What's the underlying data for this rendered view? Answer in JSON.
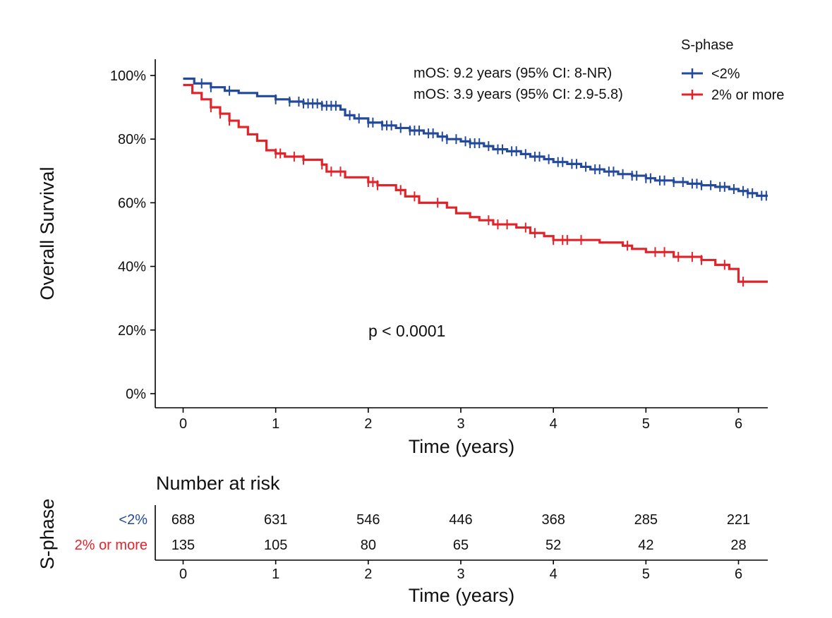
{
  "chart_data": {
    "type": "line",
    "subtype": "kaplan-meier",
    "ylabel": "Overall Survival",
    "xlabel": "Time (years)",
    "xlim": [
      -0.3,
      6.3
    ],
    "ylim": [
      0,
      1
    ],
    "x_ticks": [
      0,
      1,
      2,
      3,
      4,
      5,
      6
    ],
    "x_tick_labels": [
      "0",
      "1",
      "2",
      "3",
      "4",
      "5",
      "6"
    ],
    "y_ticks": [
      0,
      0.2,
      0.4,
      0.6,
      0.8,
      1.0
    ],
    "y_tick_labels": [
      "0%",
      "20%",
      "40%",
      "60%",
      "80%",
      "100%"
    ],
    "grid": false,
    "legend": {
      "title": "S-phase",
      "position": "top-right",
      "entries": [
        "<2%",
        "2% or more"
      ]
    },
    "annotations": {
      "mos_lines": [
        "mOS: 9.2 years (95% CI: 8-NR)",
        "mOS: 3.9 years (95% CI: 2.9-5.8)"
      ],
      "p_value": "p < 0.0001"
    },
    "series": [
      {
        "name": "<2%",
        "color": "#234a9a",
        "steps": [
          [
            0,
            0.99
          ],
          [
            0.12,
            0.975
          ],
          [
            0.3,
            0.963
          ],
          [
            0.45,
            0.952
          ],
          [
            0.6,
            0.945
          ],
          [
            0.8,
            0.935
          ],
          [
            1.0,
            0.925
          ],
          [
            1.15,
            0.918
          ],
          [
            1.3,
            0.912
          ],
          [
            1.5,
            0.905
          ],
          [
            1.7,
            0.893
          ],
          [
            1.75,
            0.875
          ],
          [
            1.85,
            0.865
          ],
          [
            2.0,
            0.852
          ],
          [
            2.15,
            0.843
          ],
          [
            2.3,
            0.835
          ],
          [
            2.45,
            0.827
          ],
          [
            2.6,
            0.818
          ],
          [
            2.75,
            0.808
          ],
          [
            2.85,
            0.8
          ],
          [
            3.0,
            0.793
          ],
          [
            3.1,
            0.787
          ],
          [
            3.25,
            0.778
          ],
          [
            3.35,
            0.768
          ],
          [
            3.5,
            0.762
          ],
          [
            3.65,
            0.753
          ],
          [
            3.75,
            0.745
          ],
          [
            3.9,
            0.737
          ],
          [
            4.0,
            0.728
          ],
          [
            4.15,
            0.722
          ],
          [
            4.3,
            0.713
          ],
          [
            4.4,
            0.705
          ],
          [
            4.55,
            0.698
          ],
          [
            4.7,
            0.69
          ],
          [
            4.85,
            0.685
          ],
          [
            5.0,
            0.677
          ],
          [
            5.1,
            0.67
          ],
          [
            5.3,
            0.665
          ],
          [
            5.45,
            0.66
          ],
          [
            5.6,
            0.655
          ],
          [
            5.75,
            0.65
          ],
          [
            5.9,
            0.643
          ],
          [
            6.0,
            0.637
          ],
          [
            6.1,
            0.63
          ],
          [
            6.2,
            0.622
          ]
        ],
        "censor_x": [
          0.2,
          0.3,
          0.5,
          1.0,
          1.15,
          1.25,
          1.3,
          1.35,
          1.4,
          1.45,
          1.5,
          1.55,
          1.6,
          1.65,
          1.8,
          1.9,
          2.0,
          2.05,
          2.15,
          2.2,
          2.25,
          2.35,
          2.45,
          2.5,
          2.55,
          2.65,
          2.7,
          2.8,
          2.85,
          2.95,
          3.05,
          3.1,
          3.15,
          3.2,
          3.3,
          3.4,
          3.45,
          3.55,
          3.6,
          3.7,
          3.8,
          3.85,
          3.95,
          4.05,
          4.1,
          4.2,
          4.25,
          4.35,
          4.45,
          4.5,
          4.6,
          4.65,
          4.75,
          4.85,
          4.9,
          5.0,
          5.05,
          5.15,
          5.2,
          5.3,
          5.4,
          5.5,
          5.55,
          5.6,
          5.7,
          5.8,
          5.85,
          5.95,
          6.05,
          6.1,
          6.15,
          6.25,
          6.3
        ]
      },
      {
        "name": "2% or more",
        "color": "#e3232a",
        "steps": [
          [
            0,
            0.97
          ],
          [
            0.1,
            0.945
          ],
          [
            0.2,
            0.925
          ],
          [
            0.3,
            0.9
          ],
          [
            0.4,
            0.88
          ],
          [
            0.5,
            0.858
          ],
          [
            0.6,
            0.838
          ],
          [
            0.7,
            0.815
          ],
          [
            0.8,
            0.795
          ],
          [
            0.9,
            0.765
          ],
          [
            1.0,
            0.755
          ],
          [
            1.1,
            0.745
          ],
          [
            1.3,
            0.735
          ],
          [
            1.5,
            0.72
          ],
          [
            1.55,
            0.698
          ],
          [
            1.75,
            0.68
          ],
          [
            2.0,
            0.665
          ],
          [
            2.1,
            0.655
          ],
          [
            2.3,
            0.64
          ],
          [
            2.4,
            0.62
          ],
          [
            2.55,
            0.6
          ],
          [
            2.65,
            0.6
          ],
          [
            2.85,
            0.585
          ],
          [
            2.95,
            0.567
          ],
          [
            3.1,
            0.555
          ],
          [
            3.2,
            0.545
          ],
          [
            3.35,
            0.532
          ],
          [
            3.6,
            0.522
          ],
          [
            3.75,
            0.505
          ],
          [
            3.9,
            0.495
          ],
          [
            4.0,
            0.483
          ],
          [
            4.15,
            0.483
          ],
          [
            4.5,
            0.475
          ],
          [
            4.75,
            0.465
          ],
          [
            4.85,
            0.455
          ],
          [
            5.0,
            0.445
          ],
          [
            5.3,
            0.43
          ],
          [
            5.6,
            0.42
          ],
          [
            5.75,
            0.405
          ],
          [
            5.9,
            0.392
          ],
          [
            6.0,
            0.352
          ]
        ],
        "censor_x": [
          0.3,
          0.4,
          0.5,
          1.0,
          1.05,
          1.2,
          1.3,
          1.5,
          1.6,
          1.7,
          2.0,
          2.05,
          2.1,
          2.35,
          2.5,
          2.75,
          3.3,
          3.4,
          3.5,
          3.7,
          3.8,
          4.0,
          4.1,
          4.15,
          4.3,
          4.8,
          5.1,
          5.2,
          5.35,
          5.5,
          5.6,
          5.85,
          6.05
        ]
      }
    ],
    "risk_table": {
      "title": "Number at risk",
      "row_axis_label": "S-phase",
      "xlabel": "Time (years)",
      "times": [
        0,
        1,
        2,
        3,
        4,
        5,
        6
      ],
      "time_labels": [
        "0",
        "1",
        "2",
        "3",
        "4",
        "5",
        "6"
      ],
      "rows": [
        {
          "label": "<2%",
          "color": "#234a9a",
          "values": [
            "688",
            "631",
            "546",
            "446",
            "368",
            "285",
            "221"
          ]
        },
        {
          "label": "2% or more",
          "color": "#e3232a",
          "values": [
            "135",
            "105",
            "80",
            "65",
            "52",
            "42",
            "28"
          ]
        }
      ]
    }
  }
}
